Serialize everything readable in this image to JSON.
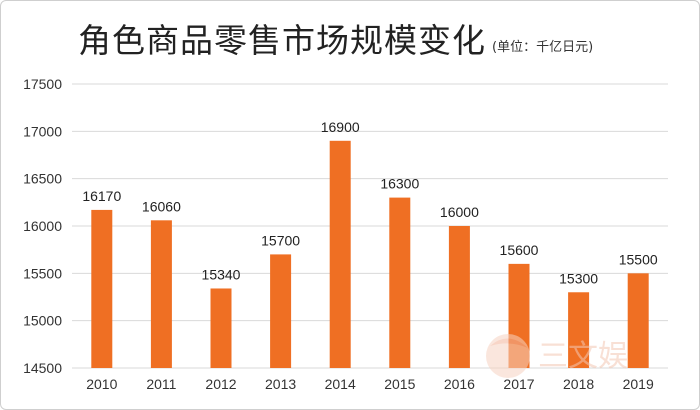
{
  "chart_data": {
    "type": "bar",
    "title": "角色商品零售市场规模变化",
    "subtitle": "(单位：千亿日元)",
    "categories": [
      "2010",
      "2011",
      "2012",
      "2013",
      "2014",
      "2015",
      "2016",
      "2017",
      "2018",
      "2019"
    ],
    "values": [
      16170,
      16060,
      15340,
      15700,
      16900,
      16300,
      16000,
      15600,
      15300,
      15500
    ],
    "ylim": [
      14500,
      17500
    ],
    "yticks": [
      "14500",
      "15000",
      "15500",
      "16000",
      "16500",
      "17000",
      "17500"
    ],
    "grid": true,
    "bar_color": "#ef6f23",
    "grid_color": "#d9d9d9"
  },
  "watermark": "三文娱"
}
